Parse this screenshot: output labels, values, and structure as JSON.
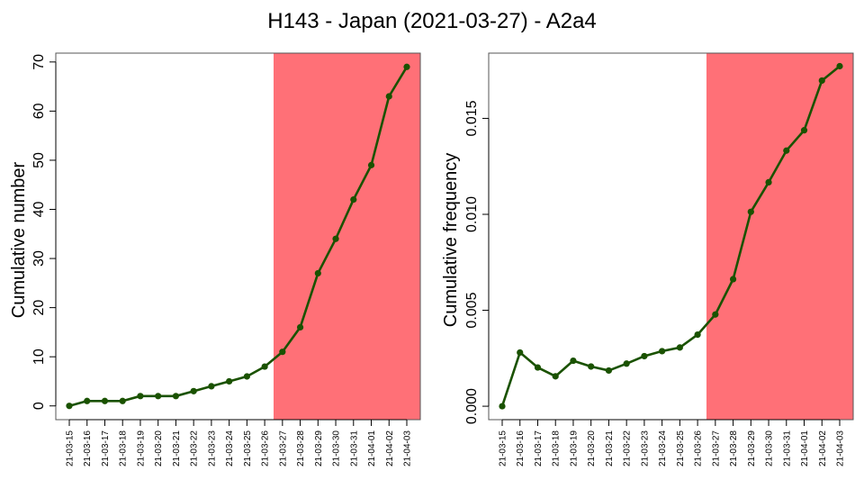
{
  "title": "H143 - Japan (2021-03-27) - A2a4",
  "colors": {
    "highlight": "#FF7077",
    "series": "#1A5200",
    "frame": "#555555"
  },
  "chart_data": [
    {
      "type": "line",
      "title": "",
      "xlabel": "",
      "ylabel": "Cumulative number",
      "x": [
        "21-03-15",
        "21-03-16",
        "21-03-17",
        "21-03-18",
        "21-03-19",
        "21-03-20",
        "21-03-21",
        "21-03-22",
        "21-03-23",
        "21-03-24",
        "21-03-25",
        "21-03-26",
        "21-03-27",
        "21-03-28",
        "21-03-29",
        "21-03-30",
        "21-03-31",
        "21-04-01",
        "21-04-02",
        "21-04-03"
      ],
      "values": [
        0,
        1,
        1,
        1,
        2,
        2,
        2,
        3,
        4,
        5,
        6,
        8,
        11,
        16,
        27,
        34,
        42,
        49,
        63,
        69
      ],
      "ylim": [
        -2.8,
        71.8
      ],
      "yticks": [
        0,
        10,
        20,
        30,
        40,
        50,
        60,
        70
      ],
      "ytick_labels": [
        "0",
        "10",
        "20",
        "30",
        "40",
        "50",
        "60",
        "70"
      ],
      "highlight_start": "21-03-27",
      "grid": false
    },
    {
      "type": "line",
      "title": "",
      "xlabel": "",
      "ylabel": "Cumulative frequency",
      "x": [
        "21-03-15",
        "21-03-16",
        "21-03-17",
        "21-03-18",
        "21-03-19",
        "21-03-20",
        "21-03-21",
        "21-03-22",
        "21-03-23",
        "21-03-24",
        "21-03-25",
        "21-03-26",
        "21-03-27",
        "21-03-28",
        "21-03-29",
        "21-03-30",
        "21-03-31",
        "21-04-01",
        "21-04-02",
        "21-04-03"
      ],
      "values": [
        0.0,
        0.0028,
        0.00202,
        0.00156,
        0.00237,
        0.00207,
        0.00186,
        0.00222,
        0.00261,
        0.00287,
        0.00306,
        0.00373,
        0.00478,
        0.00662,
        0.01013,
        0.01167,
        0.01332,
        0.01438,
        0.01697,
        0.01772
      ],
      "ylim": [
        -0.0007,
        0.0184
      ],
      "yticks": [
        0.0,
        0.005,
        0.01,
        0.015
      ],
      "ytick_labels": [
        "0.000",
        "0.005",
        "0.010",
        "0.015"
      ],
      "highlight_start": "21-03-27",
      "grid": false
    }
  ]
}
